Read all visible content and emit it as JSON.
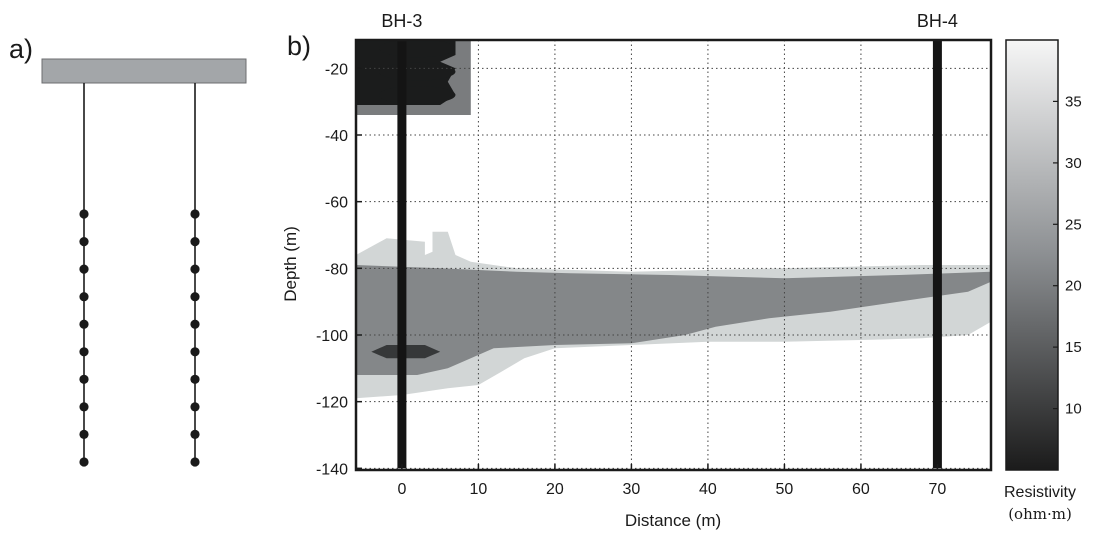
{
  "panel_a": {
    "label": "a)",
    "electrodes_per_borehole": 10,
    "colors": {
      "surface_block": "#a3a6a9",
      "line": "#1a1a1a"
    }
  },
  "chart_data": {
    "type": "heatmap",
    "panel_label": "b)",
    "title": "",
    "xlabel": "Distance (m)",
    "ylabel": "Depth (m)",
    "xlim": [
      -6,
      77
    ],
    "ylim": [
      -140.5,
      -11.5
    ],
    "x_ticks": [
      0,
      10,
      20,
      30,
      40,
      50,
      60,
      70
    ],
    "y_ticks": [
      -20,
      -40,
      -60,
      -80,
      -100,
      -120,
      -140
    ],
    "grid": true,
    "boreholes": [
      {
        "name": "BH-3",
        "x": 0,
        "depth_top": -11.5,
        "depth_bottom": -140
      },
      {
        "name": "BH-4",
        "x": 70,
        "depth_top": -11.5,
        "depth_bottom": -140
      }
    ],
    "colorbar": {
      "label": "Resistivity",
      "unit": "(ohm·m)",
      "ticks": [
        10,
        15,
        20,
        25,
        30,
        35
      ],
      "range": [
        5,
        40
      ],
      "color_low": "#1b1b1b",
      "color_high": "#f6f6f6"
    },
    "zones": [
      {
        "resistivity": 35,
        "color": "#d2d6d6",
        "polygon": [
          [
            -6,
            -76
          ],
          [
            -2,
            -71
          ],
          [
            3,
            -72
          ],
          [
            3,
            -76
          ],
          [
            4,
            -75
          ],
          [
            4,
            -69
          ],
          [
            6,
            -69
          ],
          [
            7,
            -76
          ],
          [
            9,
            -78
          ],
          [
            15,
            -80
          ],
          [
            30,
            -81
          ],
          [
            50,
            -80
          ],
          [
            68,
            -79
          ],
          [
            77,
            -79
          ],
          [
            77,
            -92
          ],
          [
            77,
            -96
          ],
          [
            74,
            -100
          ],
          [
            68,
            -101
          ],
          [
            60,
            -101.5
          ],
          [
            50,
            -102
          ],
          [
            40,
            -102
          ],
          [
            30,
            -103
          ],
          [
            20,
            -104
          ],
          [
            16,
            -107
          ],
          [
            13,
            -111
          ],
          [
            10,
            -115
          ],
          [
            6,
            -116
          ],
          [
            0,
            -118
          ],
          [
            -6,
            -119
          ]
        ]
      },
      {
        "resistivity": 22,
        "color": "#848789",
        "polygon": [
          [
            -6,
            -79
          ],
          [
            5,
            -80
          ],
          [
            15,
            -81
          ],
          [
            22,
            -81.5
          ],
          [
            35,
            -82
          ],
          [
            50,
            -83
          ],
          [
            65,
            -82
          ],
          [
            77,
            -81
          ],
          [
            77,
            -84
          ],
          [
            74,
            -87
          ],
          [
            68,
            -89
          ],
          [
            62,
            -91
          ],
          [
            56,
            -93
          ],
          [
            48,
            -95
          ],
          [
            41,
            -97.5
          ],
          [
            37,
            -100
          ],
          [
            30,
            -102.5
          ],
          [
            20,
            -103
          ],
          [
            12,
            -104
          ],
          [
            9,
            -107
          ],
          [
            6,
            -110
          ],
          [
            2,
            -112
          ],
          [
            -6,
            -112
          ]
        ]
      },
      {
        "resistivity": 12,
        "color": "#363839",
        "polygon": [
          [
            -4,
            -105
          ],
          [
            -2,
            -103
          ],
          [
            3,
            -103
          ],
          [
            5,
            -105
          ],
          [
            3,
            -107
          ],
          [
            -2,
            -107
          ]
        ]
      },
      {
        "resistivity": 8,
        "color": "#7a7c7e",
        "polygon": [
          [
            -6,
            -11.5
          ],
          [
            9,
            -11.5
          ],
          [
            9,
            -34
          ],
          [
            -6,
            -34
          ]
        ]
      },
      {
        "resistivity": 8,
        "color": "#1b1c1c",
        "polygon": [
          [
            -6,
            -11.5
          ],
          [
            7,
            -11.5
          ],
          [
            7,
            -16
          ],
          [
            5,
            -18
          ],
          [
            7,
            -20
          ],
          [
            6,
            -24
          ],
          [
            7,
            -28
          ],
          [
            5,
            -31
          ],
          [
            -6,
            -31
          ]
        ]
      }
    ]
  }
}
